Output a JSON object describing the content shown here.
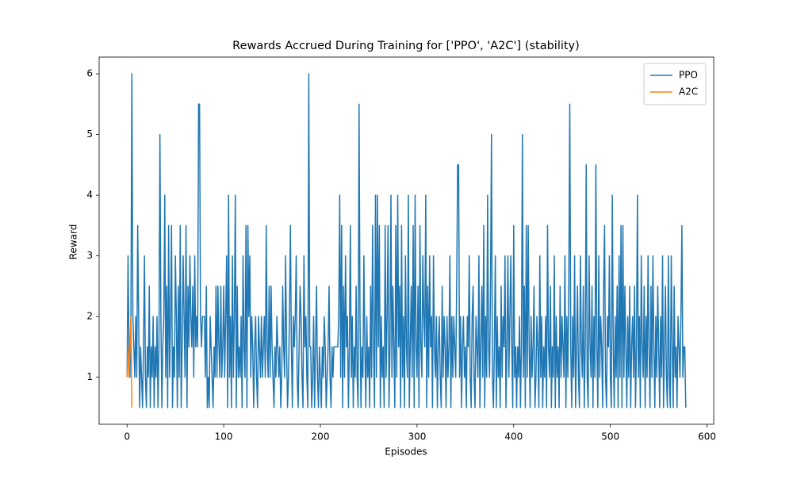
{
  "chart_data": {
    "type": "line",
    "title": "Rewards Accrued During Training for ['PPO', 'A2C'] (stability)",
    "x_label": "Episodes",
    "y_label": "Reward",
    "xlim": [
      -28.9,
      606.9
    ],
    "xticks": [
      0,
      100,
      200,
      300,
      400,
      500,
      600
    ],
    "ylim": [
      0.225,
      6.275
    ],
    "yticks": [
      1,
      2,
      3,
      4,
      5,
      6
    ],
    "grid": false,
    "legend": "upper right",
    "series": [
      {
        "name": "PPO",
        "color": "#1f77b4",
        "values": [
          1,
          3,
          1.5,
          1,
          2,
          6,
          2,
          1.5,
          1,
          2,
          1,
          3.5,
          2,
          0.5,
          1.5,
          1,
          0.5,
          1.5,
          3,
          1,
          0.5,
          1.5,
          1,
          2.5,
          0.5,
          1.5,
          1,
          2,
          0.5,
          1.5,
          1,
          2,
          0.5,
          1.5,
          5,
          2,
          0.5,
          1.5,
          2,
          4,
          1,
          2.5,
          0.5,
          3.5,
          1,
          2,
          3.5,
          0.5,
          1.5,
          1,
          3,
          2,
          0.5,
          2.5,
          1,
          3.5,
          0.5,
          1.5,
          3,
          2,
          1,
          3.5,
          0.5,
          2.5,
          1.5,
          3,
          2,
          1.5,
          2.5,
          1,
          3,
          1.5,
          2,
          1.5,
          5.5,
          5.5,
          2,
          1.5,
          2,
          2,
          2,
          1,
          2.5,
          0.5,
          1,
          0.5,
          2,
          1.5,
          1,
          0.5,
          1.5,
          1,
          2.5,
          1,
          2.5,
          1.5,
          1,
          2.5,
          1,
          1.5,
          2.5,
          1,
          2,
          3,
          0.5,
          4,
          1,
          2,
          0.5,
          3,
          1,
          2,
          4,
          0.5,
          2.5,
          1,
          1.5,
          1,
          2,
          0.5,
          3,
          1.5,
          1,
          3.5,
          0.5,
          3.5,
          2,
          3,
          1,
          2,
          1.5,
          0.5,
          1.5,
          2,
          1,
          0.5,
          2,
          1.5,
          1,
          2,
          1,
          1.5,
          2,
          1,
          3.5,
          1.5,
          1,
          2.5,
          1,
          2.5,
          1.5,
          1,
          0.5,
          1.5,
          1,
          2,
          1.5,
          1,
          1.5,
          0.5,
          1,
          2.5,
          1.5,
          1,
          3,
          1.5,
          0.5,
          1,
          2,
          3.5,
          1.5,
          0.5,
          2,
          1.5,
          2,
          3,
          1,
          0.5,
          1.5,
          2.5,
          2,
          1,
          0.5,
          3,
          1.5,
          2,
          1,
          0.5,
          6,
          1.5,
          1.5,
          0.5,
          1,
          2,
          0.5,
          1.5,
          2.5,
          1,
          0.5,
          1.5,
          1,
          0.5,
          1.5,
          1,
          2,
          1.5,
          0.5,
          1,
          1.5,
          2.5,
          1,
          0.5,
          1.5,
          1,
          1.5,
          1.5,
          1.5,
          1.5,
          1.5,
          2,
          4,
          1,
          3.5,
          0.5,
          2.5,
          1,
          3,
          1.5,
          2,
          0.5,
          1.5,
          3.5,
          1,
          2,
          0.5,
          1.5,
          1,
          2.5,
          1,
          0.5,
          5.5,
          2,
          0.5,
          1.5,
          1,
          3,
          1.5,
          0.5,
          2,
          1,
          1.5,
          0.5,
          2.5,
          1,
          3.5,
          1.5,
          0.5,
          4,
          1,
          4,
          1.5,
          3.5,
          0.5,
          2,
          1,
          1.5,
          0.5,
          3.5,
          1,
          2,
          3.5,
          0.5,
          1.5,
          4,
          1,
          2.5,
          1.5,
          0.5,
          3.5,
          1,
          4,
          1.5,
          2.5,
          0.5,
          3.5,
          1,
          2,
          0.5,
          3,
          1.5,
          1,
          4,
          0.5,
          1.5,
          2.5,
          1,
          3.5,
          0.5,
          4,
          1.5,
          1,
          2.5,
          0.5,
          3.5,
          1.5,
          1,
          3,
          2,
          1.5,
          4,
          0.5,
          2.5,
          1,
          3,
          1.5,
          2,
          0.5,
          3,
          1.5,
          1,
          2,
          0.5,
          1.5,
          2,
          1,
          0.5,
          2.5,
          1,
          2,
          1.5,
          0.5,
          2,
          1,
          1.5,
          3,
          0.5,
          2,
          1,
          2,
          1.5,
          1,
          2.5,
          4.5,
          4.5,
          1,
          2,
          0.5,
          1.5,
          2,
          1,
          1.5,
          0.5,
          2,
          1.5,
          3,
          1,
          0.5,
          2,
          2.5,
          1,
          0.5,
          2,
          1.5,
          1,
          3,
          0.5,
          1.5,
          2.5,
          1,
          3.5,
          0.5,
          2,
          1,
          4,
          1.5,
          1,
          2.5,
          5,
          1,
          0.5,
          1.5,
          3,
          0.5,
          2,
          1,
          1.5,
          0.5,
          2.5,
          1,
          2,
          1.5,
          3,
          0.5,
          1.5,
          3,
          1,
          2,
          3,
          1.5,
          0.5,
          3.5,
          1,
          1.5,
          0.5,
          1.5,
          1,
          2,
          0.5,
          1.5,
          5,
          1,
          2.5,
          0.5,
          3.5,
          1,
          3.5,
          1.5,
          0.5,
          2,
          1,
          1.5,
          2.5,
          0.5,
          1,
          2,
          1.5,
          0.5,
          3,
          1,
          2,
          0.5,
          1.5,
          1,
          2,
          0.5,
          3.5,
          1.5,
          1,
          2.5,
          0.5,
          1.5,
          1,
          3,
          0.5,
          2,
          1,
          1.5,
          0.5,
          2.5,
          1,
          2,
          1.5,
          1,
          3,
          0.5,
          2,
          1,
          2.5,
          5.5,
          1.5,
          0.5,
          2,
          1,
          3,
          0.5,
          1.5,
          2.5,
          1,
          0.5,
          3,
          1.5,
          1,
          2.5,
          0.5,
          1.5,
          4.5,
          1,
          0.5,
          3,
          1.5,
          1,
          2.5,
          0.5,
          2,
          1,
          4.5,
          1.5,
          0.5,
          3,
          1,
          2,
          1.5,
          0.5,
          2.5,
          3.5,
          1,
          0.5,
          2,
          1.5,
          3,
          1,
          0.5,
          4,
          1.5,
          0.5,
          2,
          1,
          2.5,
          0.5,
          3,
          1,
          3.5,
          0.5,
          3.5,
          1,
          2.5,
          1.5,
          0.5,
          2,
          1,
          2.5,
          0.5,
          1.5,
          2,
          1,
          2.5,
          0.5,
          1.5,
          4,
          1,
          2,
          0.5,
          3,
          1.5,
          1,
          2.5,
          0.5,
          2,
          1,
          3,
          1.5,
          0.5,
          2.5,
          1,
          3,
          1.5,
          0.5,
          2,
          1,
          2.5,
          1.5,
          0.5,
          2,
          1,
          3,
          0.5,
          1.5,
          2.5,
          1,
          0.5,
          3,
          1,
          0.5,
          3,
          1.5,
          0.5,
          2.5,
          1,
          1.5,
          0.5,
          2,
          1.5,
          1,
          2,
          3.5,
          1,
          1.5,
          1.5,
          0.5
        ]
      },
      {
        "name": "A2C",
        "color": "#ff7f0e",
        "values": [
          1,
          1.5,
          1,
          1.5,
          2,
          0.5
        ]
      }
    ]
  }
}
